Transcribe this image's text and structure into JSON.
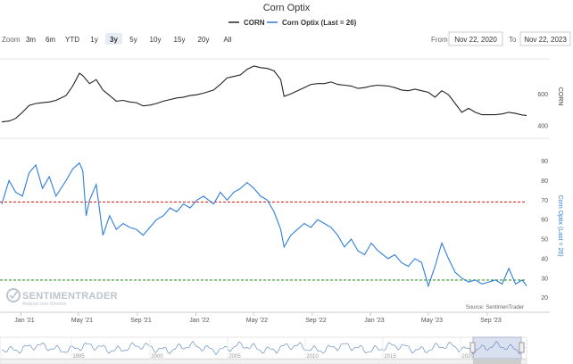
{
  "colors": {
    "corn": "#222222",
    "optix": "#2f7ed8",
    "upper_line": "#d9302b",
    "lower_line": "#2f9a2f",
    "grid": "#e6e6e6",
    "selected_btn": "#e6ebf5"
  },
  "toolbar": {
    "zoom_label": "Zoom",
    "buttons": [
      "3m",
      "6m",
      "YTD",
      "1y",
      "3y",
      "5y",
      "10y",
      "15y",
      "20y",
      "All"
    ],
    "selected": "3y",
    "from_label": "From",
    "from_value": "Nov 22, 2020",
    "to_label": "To",
    "to_value": "Nov 22, 2023"
  },
  "watermark": {
    "name": "SENTIMENTRADER",
    "tagline": "Analysis over Emotion"
  },
  "source": "Source: SentimenTrader",
  "navigator": {
    "years": [
      "1995",
      "2000",
      "2005",
      "2010",
      "2015",
      "2020"
    ]
  },
  "chart_data": {
    "type": "line",
    "title": "Corn Optix",
    "legend": {
      "placement": "top-center",
      "entries": [
        "CORN",
        "Corn Optix (Last = 26)"
      ]
    },
    "x_axis": {
      "ticks": [
        "Jan '21",
        "May '21",
        "Sep '21",
        "Jan '22",
        "May '22",
        "Sep '22",
        "Jan '23",
        "May '23",
        "Sep '23"
      ],
      "range": [
        "Nov 22, 2020",
        "Nov 22, 2023"
      ]
    },
    "panels": [
      {
        "series": "CORN",
        "ylabel": "CORN",
        "y_ticks": [
          400,
          600
        ],
        "ylim": [
          350,
          820
        ],
        "grid": false
      },
      {
        "series": "Corn Optix (Last = 26)",
        "ylabel": "Corn Optix (Last = 26)",
        "y_ticks": [
          20,
          30,
          40,
          50,
          60,
          70,
          80,
          90
        ],
        "ylim": [
          18,
          93
        ],
        "reference_lines": [
          69,
          29
        ],
        "grid": false
      }
    ],
    "series": [
      {
        "name": "CORN",
        "color": "#222222",
        "points": [
          [
            "2020-11-22",
            425
          ],
          [
            "2020-12-07",
            430
          ],
          [
            "2020-12-21",
            447
          ],
          [
            "2021-01-04",
            485
          ],
          [
            "2021-01-18",
            528
          ],
          [
            "2021-02-01",
            540
          ],
          [
            "2021-02-15",
            545
          ],
          [
            "2021-03-01",
            550
          ],
          [
            "2021-03-15",
            560
          ],
          [
            "2021-04-05",
            590
          ],
          [
            "2021-04-19",
            650
          ],
          [
            "2021-05-03",
            730
          ],
          [
            "2021-05-10",
            715
          ],
          [
            "2021-05-24",
            665
          ],
          [
            "2021-06-07",
            690
          ],
          [
            "2021-06-21",
            625
          ],
          [
            "2021-07-05",
            590
          ],
          [
            "2021-07-19",
            555
          ],
          [
            "2021-08-02",
            560
          ],
          [
            "2021-08-16",
            550
          ],
          [
            "2021-08-30",
            545
          ],
          [
            "2021-09-13",
            525
          ],
          [
            "2021-09-27",
            530
          ],
          [
            "2021-10-11",
            540
          ],
          [
            "2021-10-25",
            555
          ],
          [
            "2021-11-08",
            565
          ],
          [
            "2021-11-22",
            575
          ],
          [
            "2021-12-06",
            580
          ],
          [
            "2021-12-20",
            590
          ],
          [
            "2022-01-03",
            595
          ],
          [
            "2022-01-17",
            605
          ],
          [
            "2022-02-07",
            625
          ],
          [
            "2022-02-21",
            660
          ],
          [
            "2022-03-07",
            700
          ],
          [
            "2022-03-21",
            710
          ],
          [
            "2022-04-04",
            720
          ],
          [
            "2022-04-18",
            755
          ],
          [
            "2022-05-02",
            775
          ],
          [
            "2022-05-16",
            765
          ],
          [
            "2022-05-30",
            760
          ],
          [
            "2022-06-13",
            745
          ],
          [
            "2022-06-27",
            690
          ],
          [
            "2022-07-04",
            585
          ],
          [
            "2022-07-18",
            600
          ],
          [
            "2022-08-01",
            620
          ],
          [
            "2022-08-15",
            640
          ],
          [
            "2022-08-29",
            660
          ],
          [
            "2022-09-12",
            665
          ],
          [
            "2022-09-26",
            665
          ],
          [
            "2022-10-10",
            675
          ],
          [
            "2022-10-24",
            660
          ],
          [
            "2022-11-07",
            655
          ],
          [
            "2022-11-21",
            650
          ],
          [
            "2022-12-05",
            635
          ],
          [
            "2022-12-19",
            640
          ],
          [
            "2023-01-02",
            650
          ],
          [
            "2023-01-16",
            655
          ],
          [
            "2023-02-06",
            650
          ],
          [
            "2023-02-20",
            640
          ],
          [
            "2023-03-06",
            625
          ],
          [
            "2023-03-20",
            620
          ],
          [
            "2023-04-03",
            630
          ],
          [
            "2023-04-17",
            620
          ],
          [
            "2023-05-01",
            610
          ],
          [
            "2023-05-15",
            580
          ],
          [
            "2023-05-29",
            620
          ],
          [
            "2023-06-12",
            595
          ],
          [
            "2023-06-26",
            540
          ],
          [
            "2023-07-10",
            485
          ],
          [
            "2023-07-24",
            510
          ],
          [
            "2023-08-07",
            485
          ],
          [
            "2023-08-21",
            470
          ],
          [
            "2023-09-04",
            470
          ],
          [
            "2023-09-18",
            470
          ],
          [
            "2023-10-02",
            475
          ],
          [
            "2023-10-16",
            485
          ],
          [
            "2023-10-30",
            478
          ],
          [
            "2023-11-13",
            468
          ],
          [
            "2023-11-22",
            465
          ]
        ]
      },
      {
        "name": "Corn Optix (Last = 26)",
        "color": "#2f7ed8",
        "points": [
          [
            "2020-11-22",
            68
          ],
          [
            "2020-12-07",
            80
          ],
          [
            "2020-12-21",
            74
          ],
          [
            "2021-01-04",
            72
          ],
          [
            "2021-01-18",
            84
          ],
          [
            "2021-02-01",
            88
          ],
          [
            "2021-02-15",
            76
          ],
          [
            "2021-03-01",
            82
          ],
          [
            "2021-03-15",
            72
          ],
          [
            "2021-04-05",
            80
          ],
          [
            "2021-04-19",
            86
          ],
          [
            "2021-05-03",
            89
          ],
          [
            "2021-05-10",
            85
          ],
          [
            "2021-05-17",
            62
          ],
          [
            "2021-05-24",
            70
          ],
          [
            "2021-06-07",
            78
          ],
          [
            "2021-06-21",
            52
          ],
          [
            "2021-07-05",
            62
          ],
          [
            "2021-07-19",
            55
          ],
          [
            "2021-08-02",
            58
          ],
          [
            "2021-08-16",
            56
          ],
          [
            "2021-08-30",
            55
          ],
          [
            "2021-09-13",
            52
          ],
          [
            "2021-09-27",
            56
          ],
          [
            "2021-10-11",
            60
          ],
          [
            "2021-10-25",
            62
          ],
          [
            "2021-11-08",
            66
          ],
          [
            "2021-11-22",
            64
          ],
          [
            "2021-12-06",
            68
          ],
          [
            "2021-12-20",
            66
          ],
          [
            "2022-01-03",
            70
          ],
          [
            "2022-01-17",
            72
          ],
          [
            "2022-02-07",
            68
          ],
          [
            "2022-02-21",
            74
          ],
          [
            "2022-03-07",
            70
          ],
          [
            "2022-03-21",
            74
          ],
          [
            "2022-04-04",
            76
          ],
          [
            "2022-04-18",
            79
          ],
          [
            "2022-05-02",
            76
          ],
          [
            "2022-05-16",
            72
          ],
          [
            "2022-05-30",
            70
          ],
          [
            "2022-06-13",
            64
          ],
          [
            "2022-06-27",
            55
          ],
          [
            "2022-07-04",
            46
          ],
          [
            "2022-07-18",
            52
          ],
          [
            "2022-08-01",
            55
          ],
          [
            "2022-08-15",
            58
          ],
          [
            "2022-08-29",
            56
          ],
          [
            "2022-09-12",
            60
          ],
          [
            "2022-09-26",
            58
          ],
          [
            "2022-10-10",
            56
          ],
          [
            "2022-10-24",
            52
          ],
          [
            "2022-11-07",
            46
          ],
          [
            "2022-11-21",
            50
          ],
          [
            "2022-12-05",
            44
          ],
          [
            "2022-12-19",
            42
          ],
          [
            "2023-01-02",
            48
          ],
          [
            "2023-01-16",
            44
          ],
          [
            "2023-02-06",
            40
          ],
          [
            "2023-02-20",
            42
          ],
          [
            "2023-03-06",
            38
          ],
          [
            "2023-03-20",
            36
          ],
          [
            "2023-04-03",
            40
          ],
          [
            "2023-04-17",
            38
          ],
          [
            "2023-05-01",
            26
          ],
          [
            "2023-05-15",
            36
          ],
          [
            "2023-05-29",
            48
          ],
          [
            "2023-06-12",
            40
          ],
          [
            "2023-06-26",
            33
          ],
          [
            "2023-07-10",
            30
          ],
          [
            "2023-07-24",
            28
          ],
          [
            "2023-08-07",
            29
          ],
          [
            "2023-08-21",
            27
          ],
          [
            "2023-09-04",
            28
          ],
          [
            "2023-09-18",
            29
          ],
          [
            "2023-10-02",
            27
          ],
          [
            "2023-10-16",
            35
          ],
          [
            "2023-10-30",
            27
          ],
          [
            "2023-11-13",
            29
          ],
          [
            "2023-11-22",
            26
          ]
        ]
      }
    ]
  }
}
